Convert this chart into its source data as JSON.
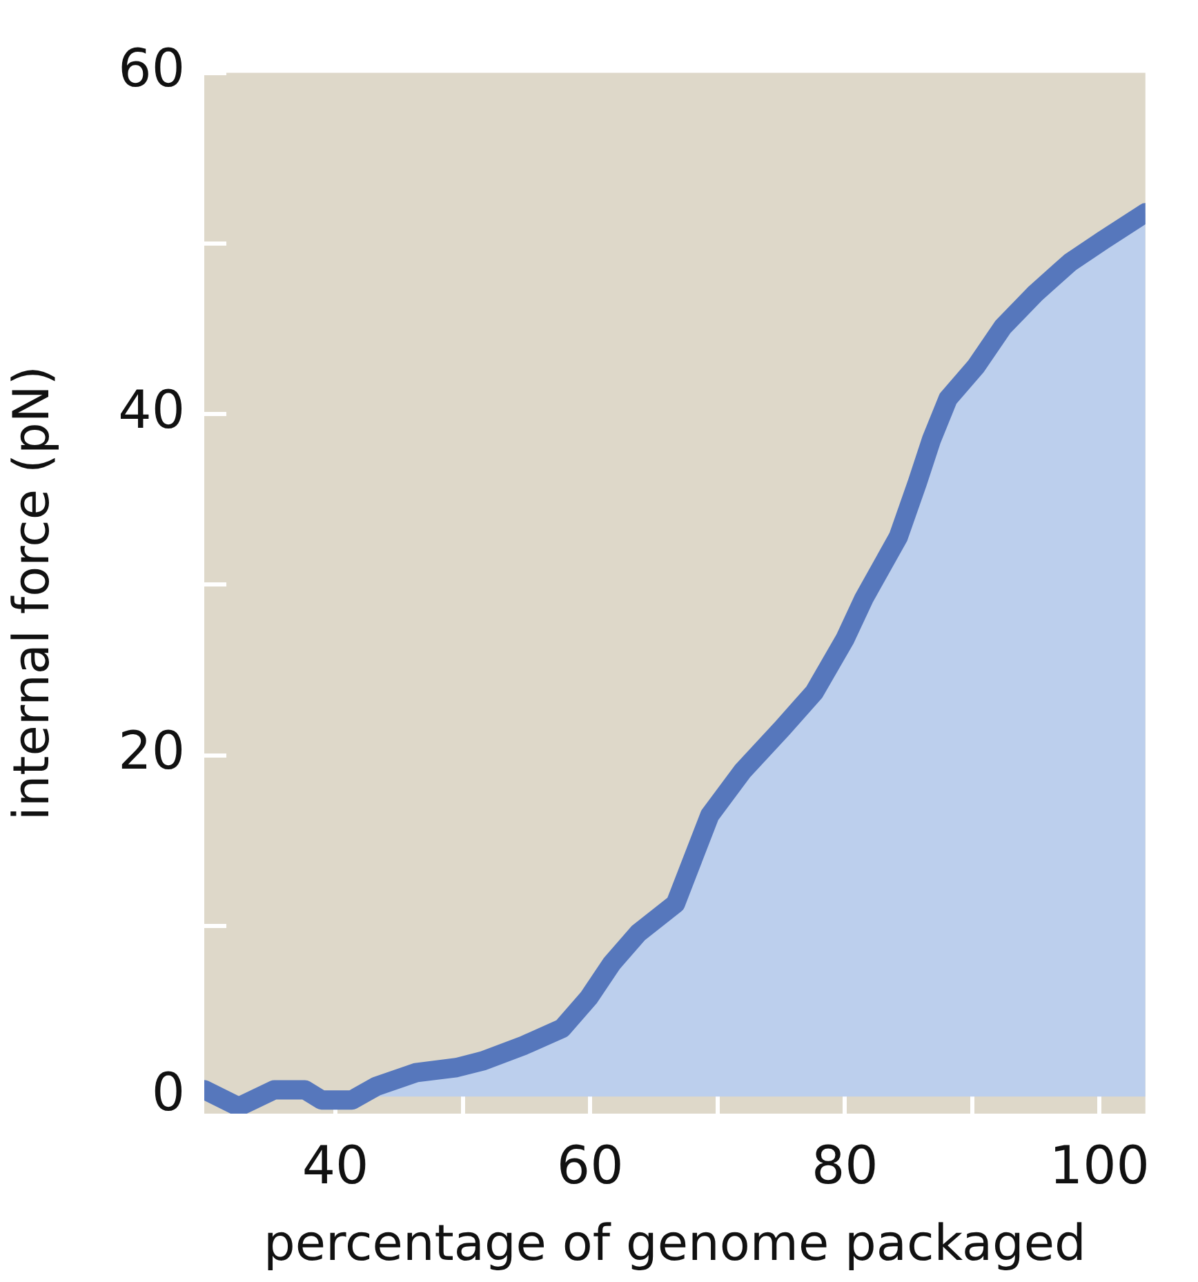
{
  "chart_data": {
    "type": "area",
    "xlabel": "percentage of genome packaged",
    "ylabel": "internal force (pN)",
    "xlim": [
      29.7,
      103.6
    ],
    "ylim": [
      -1,
      60
    ],
    "xticks": [
      40,
      {
        "value": 50,
        "label": null
      },
      60,
      {
        "value": 70,
        "label": null
      },
      80,
      {
        "value": 90,
        "label": null
      },
      100
    ],
    "yticks": [
      0,
      {
        "value": 10,
        "label": null
      },
      20,
      {
        "value": 30,
        "label": null
      },
      40,
      {
        "value": 50,
        "label": null
      },
      60
    ],
    "grid": false,
    "legend": false,
    "marker": "none",
    "line_style": "solid",
    "series": [
      {
        "color": "#5677bc",
        "x": [
          29.7,
          32.4,
          35.2,
          37.6,
          38.9,
          41.3,
          43.2,
          46.3,
          49.5,
          51.6,
          54.8,
          57.8,
          59.9,
          61.7,
          63.8,
          66.7,
          69.4,
          72.0,
          75.1,
          77.6,
          80.0,
          81.5,
          84.2,
          85.7,
          86.8,
          88.1,
          90.3,
          92.4,
          95.0,
          97.7,
          100.3,
          103.6
        ],
        "values": [
          0.4,
          -0.6,
          0.4,
          0.4,
          -0.2,
          -0.2,
          0.6,
          1.4,
          1.7,
          2.1,
          3.0,
          4.0,
          5.8,
          7.8,
          9.6,
          11.3,
          16.5,
          19.1,
          21.6,
          23.7,
          26.8,
          29.2,
          32.8,
          36.0,
          38.5,
          40.9,
          42.8,
          45.1,
          47.1,
          48.9,
          50.2,
          51.8
        ]
      }
    ]
  }
}
